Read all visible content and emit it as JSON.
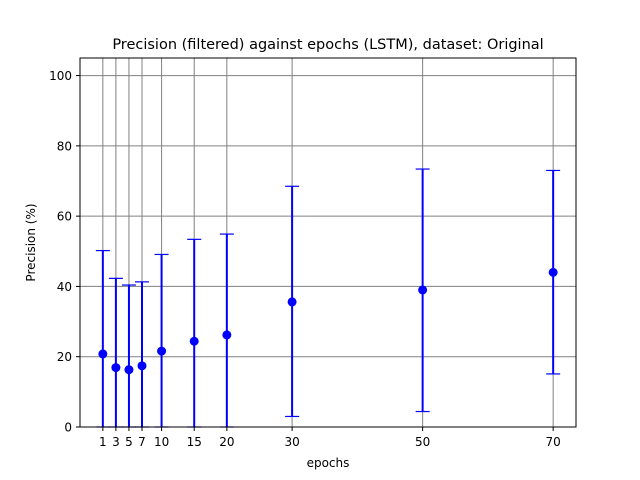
{
  "chart_data": {
    "type": "scatter",
    "title": "Precision (filtered) against epochs (LSTM), dataset: Original",
    "xlabel": "epochs",
    "ylabel": "Precision (%)",
    "x": [
      1,
      3,
      5,
      7,
      10,
      15,
      20,
      30,
      50,
      70
    ],
    "xticks": [
      "1",
      "3",
      "5",
      "7",
      "10",
      "15",
      "20",
      "30",
      "50",
      "70"
    ],
    "yticks": [
      "0",
      "20",
      "40",
      "60",
      "80",
      "100"
    ],
    "xlim": [
      -2.5,
      73.5
    ],
    "ylim": [
      0,
      105
    ],
    "grid": true,
    "series": [
      {
        "color": "#0000ff",
        "values": [
          20.8,
          16.9,
          16.3,
          17.4,
          21.6,
          24.4,
          26.2,
          35.6,
          39.0,
          44.0
        ],
        "err_low": [
          0,
          0,
          0,
          0,
          0,
          0,
          0,
          3.0,
          4.4,
          15.1
        ],
        "err_high": [
          50.2,
          42.3,
          40.4,
          41.3,
          49.1,
          53.4,
          54.9,
          68.5,
          73.4,
          73.0
        ]
      }
    ],
    "grid_color": "#808080"
  }
}
